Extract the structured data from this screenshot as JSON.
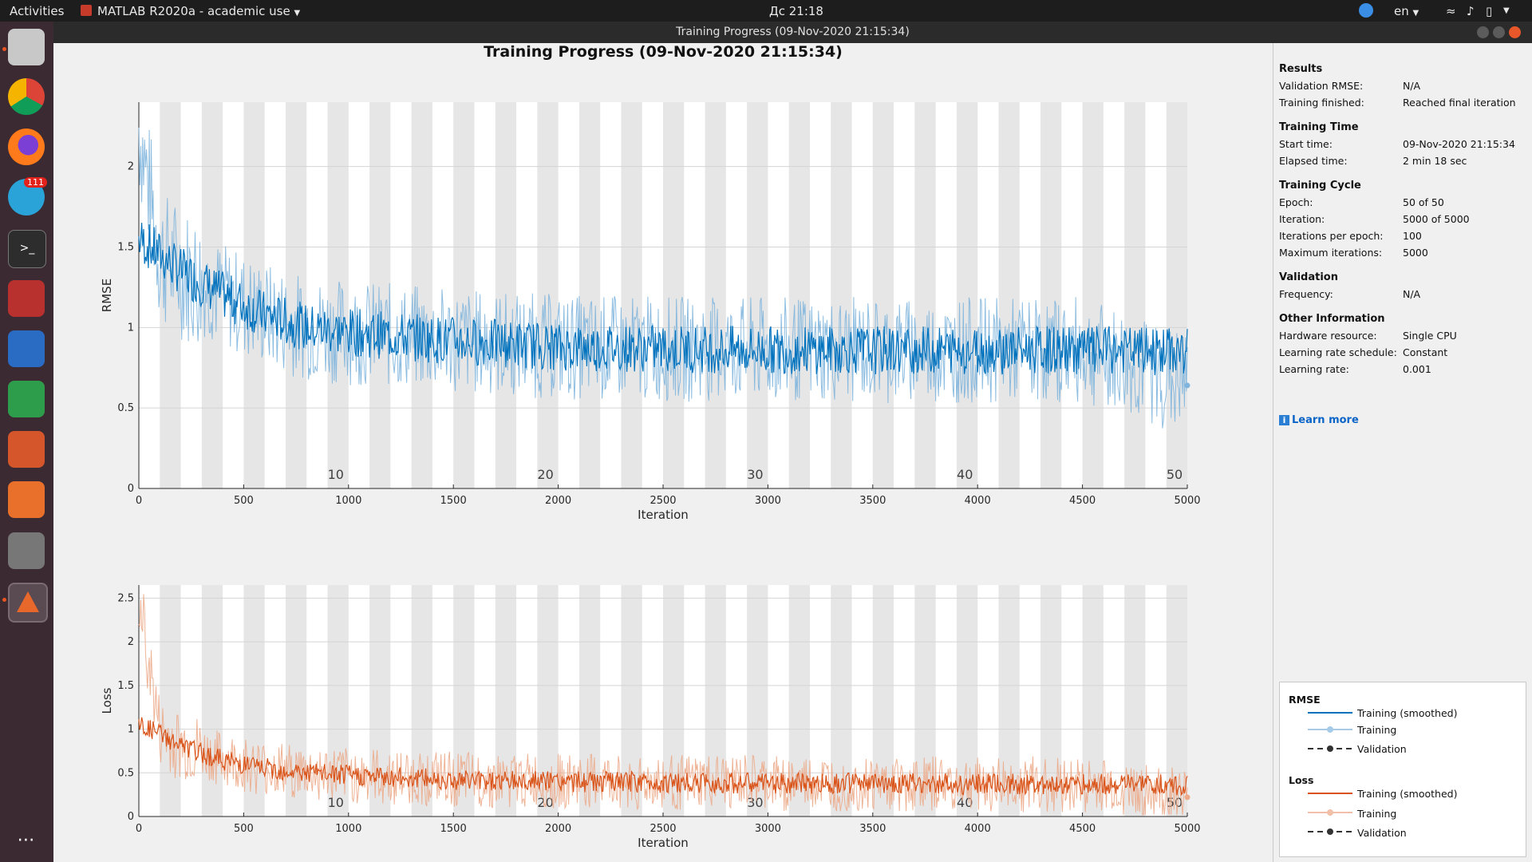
{
  "topbar": {
    "activities": "Activities",
    "app_name": "MATLAB R2020a - academic use",
    "clock": "Дс 21:18",
    "lang": "en"
  },
  "dock": {
    "items": [
      "files-icon",
      "chrome-icon",
      "firefox-icon",
      "telegram-icon",
      "terminal-icon",
      "remote-desktop-icon",
      "writer-icon",
      "calc-icon",
      "impress-icon",
      "software-icon",
      "settings-icon",
      "matlab-icon",
      "apps-grid-icon"
    ],
    "telegram_badge": "111"
  },
  "window": {
    "title": "Training Progress (09-Nov-2020 21:15:34)"
  },
  "main": {
    "title": "Training Progress (09-Nov-2020 21:15:34)"
  },
  "panel": {
    "results_title": "Results",
    "validation_rmse_label": "Validation RMSE:",
    "validation_rmse_value": "N/A",
    "training_finished_label": "Training finished:",
    "training_finished_value": "Reached final iteration",
    "training_time_title": "Training Time",
    "start_time_label": "Start time:",
    "start_time_value": "09-Nov-2020 21:15:34",
    "elapsed_time_label": "Elapsed time:",
    "elapsed_time_value": "2 min 18 sec",
    "training_cycle_title": "Training Cycle",
    "epoch_label": "Epoch:",
    "epoch_value": "50 of 50",
    "iteration_label": "Iteration:",
    "iteration_value": "5000 of 5000",
    "ipe_label": "Iterations per epoch:",
    "ipe_value": "100",
    "max_iter_label": "Maximum iterations:",
    "max_iter_value": "5000",
    "validation_title": "Validation",
    "frequency_label": "Frequency:",
    "frequency_value": "N/A",
    "other_title": "Other Information",
    "hw_label": "Hardware resource:",
    "hw_value": "Single CPU",
    "lrs_label": "Learning rate schedule:",
    "lrs_value": "Constant",
    "lr_label": "Learning rate:",
    "lr_value": "0.001",
    "learn_more": "Learn more"
  },
  "legend": {
    "rmse_title": "RMSE",
    "loss_title": "Loss",
    "training_smoothed": "Training (smoothed)",
    "training": "Training",
    "validation": "Validation",
    "rmse_color": "#0072bd",
    "loss_color": "#d95319"
  },
  "chart_data": [
    {
      "type": "line",
      "ylabel": "RMSE",
      "xlabel": "Iteration",
      "xlim": [
        0,
        5000
      ],
      "ylim": [
        0,
        2.4
      ],
      "xticks": [
        "0",
        "500",
        "1000",
        "1500",
        "2000",
        "2500",
        "3000",
        "3500",
        "4000",
        "4500",
        "5000"
      ],
      "yticks": [
        "0",
        "0.5",
        "1",
        "1.5",
        "2"
      ],
      "epoch_labels": [
        "10",
        "20",
        "30",
        "40",
        "50"
      ],
      "series": [
        {
          "name": "Training (smoothed)",
          "color": "#0072bd",
          "x": [
            0,
            100,
            200,
            400,
            600,
            800,
            1000,
            1500,
            2000,
            2500,
            3000,
            3500,
            4000,
            4500,
            5000
          ],
          "values": [
            1.55,
            1.45,
            1.35,
            1.2,
            1.08,
            1.0,
            0.97,
            0.92,
            0.88,
            0.87,
            0.86,
            0.86,
            0.86,
            0.86,
            0.85
          ]
        },
        {
          "name": "Training",
          "color": "#7fb5dd",
          "x": [
            0,
            100,
            200,
            400,
            600,
            800,
            1000,
            1500,
            2000,
            2500,
            3000,
            3500,
            4000,
            4500,
            5000
          ],
          "values": [
            2.25,
            1.45,
            1.35,
            1.2,
            1.08,
            1.0,
            0.97,
            0.92,
            0.88,
            0.87,
            0.86,
            0.86,
            0.86,
            0.86,
            0.64
          ]
        }
      ]
    },
    {
      "type": "line",
      "ylabel": "Loss",
      "xlabel": "Iteration",
      "xlim": [
        0,
        5000
      ],
      "ylim": [
        0,
        2.65
      ],
      "xticks": [
        "0",
        "500",
        "1000",
        "1500",
        "2000",
        "2500",
        "3000",
        "3500",
        "4000",
        "4500",
        "5000"
      ],
      "yticks": [
        "0",
        "0.5",
        "1",
        "1.5",
        "2",
        "2.5"
      ],
      "epoch_labels": [
        "10",
        "20",
        "30",
        "40",
        "50"
      ],
      "series": [
        {
          "name": "Training (smoothed)",
          "color": "#d95319",
          "x": [
            0,
            100,
            200,
            400,
            600,
            800,
            1000,
            1500,
            2000,
            2500,
            3000,
            3500,
            4000,
            4500,
            5000
          ],
          "values": [
            1.05,
            0.95,
            0.8,
            0.65,
            0.55,
            0.5,
            0.47,
            0.42,
            0.4,
            0.39,
            0.38,
            0.38,
            0.37,
            0.37,
            0.36
          ]
        },
        {
          "name": "Training",
          "color": "#ecaa8a",
          "x": [
            0,
            100,
            200,
            400,
            600,
            800,
            1000,
            1500,
            2000,
            2500,
            3000,
            3500,
            4000,
            4500,
            5000
          ],
          "values": [
            2.5,
            0.95,
            0.8,
            0.65,
            0.55,
            0.5,
            0.47,
            0.42,
            0.4,
            0.39,
            0.38,
            0.38,
            0.37,
            0.37,
            0.22
          ]
        }
      ]
    }
  ]
}
